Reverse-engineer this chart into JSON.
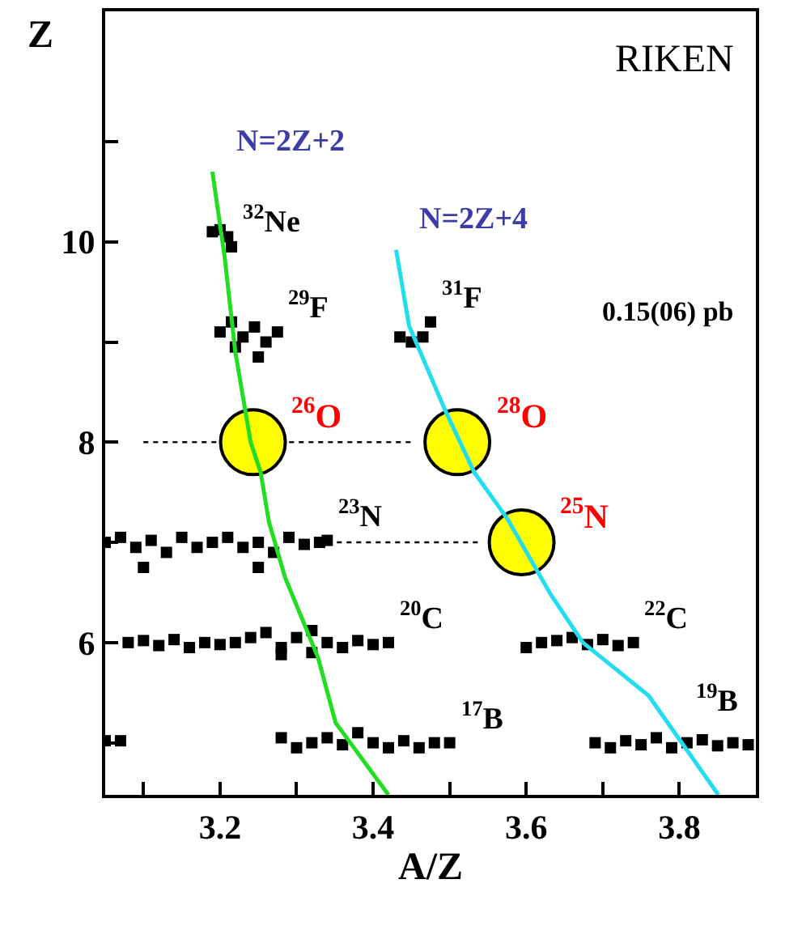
{
  "chart_data": {
    "type": "scatter",
    "xlabel": "A/Z",
    "ylabel": "Z",
    "xlim": [
      3.05,
      3.9
    ],
    "ylim": [
      4.48,
      12.3
    ],
    "xticks": [
      {
        "value": 3.1,
        "label": null
      },
      3.2,
      {
        "value": 3.3,
        "label": null
      },
      3.4,
      {
        "value": 3.5,
        "label": null
      },
      3.6,
      {
        "value": 3.7,
        "label": null
      },
      3.8
    ],
    "yticks": [
      {
        "value": 5,
        "label": null
      },
      6,
      {
        "value": 7,
        "label": null
      },
      8,
      {
        "value": 9,
        "label": null
      },
      10,
      {
        "value": 11,
        "label": null
      }
    ],
    "series": [
      {
        "type": "line",
        "color": "#000000",
        "line_style": "dotted",
        "marker": "none",
        "x": [
          3.1,
          3.45
        ],
        "values": [
          8,
          8
        ]
      },
      {
        "type": "line",
        "color": "#000000",
        "line_style": "dotted",
        "marker": "none",
        "x": [
          3.34,
          3.54
        ],
        "values": [
          7,
          7
        ]
      },
      {
        "name": "$^{32}$Ne",
        "color": "#000000",
        "marker": "square",
        "x": [
          3.19,
          3.2,
          3.21,
          3.215
        ],
        "values": [
          10.1,
          10.12,
          10.05,
          9.95
        ]
      },
      {
        "name": "$^{29}$F",
        "color": "#000000",
        "marker": "square",
        "x": [
          3.2,
          3.215,
          3.23,
          3.245,
          3.26,
          3.275,
          3.22,
          3.25
        ],
        "values": [
          9.1,
          9.2,
          9.05,
          9.15,
          9.0,
          9.1,
          8.95,
          8.85
        ]
      },
      {
        "name": "$^{31}$F",
        "color": "#000000",
        "marker": "square",
        "x": [
          3.435,
          3.45,
          3.465,
          3.475
        ],
        "values": [
          9.05,
          9.0,
          9.05,
          9.2
        ]
      },
      {
        "name": "$^{23}$N",
        "color": "#000000",
        "marker": "square",
        "x": [
          3.05,
          3.07,
          3.09,
          3.11,
          3.13,
          3.15,
          3.17,
          3.19,
          3.21,
          3.23,
          3.25,
          3.27,
          3.29,
          3.31,
          3.33,
          3.34,
          3.1,
          3.25
        ],
        "values": [
          7.0,
          7.05,
          6.95,
          7.02,
          6.9,
          7.05,
          6.95,
          7.0,
          7.05,
          6.95,
          7.0,
          6.9,
          7.05,
          6.98,
          7.0,
          7.02,
          6.75,
          6.75
        ]
      },
      {
        "name": "$^{20}$C",
        "color": "#000000",
        "marker": "square",
        "x": [
          3.08,
          3.1,
          3.12,
          3.14,
          3.16,
          3.18,
          3.2,
          3.22,
          3.24,
          3.26,
          3.28,
          3.3,
          3.32,
          3.34,
          3.36,
          3.38,
          3.4,
          3.42,
          3.28,
          3.32
        ],
        "values": [
          6.0,
          6.02,
          5.97,
          6.03,
          5.95,
          6.0,
          5.98,
          6.0,
          6.05,
          6.1,
          5.95,
          6.05,
          5.9,
          6.0,
          5.95,
          6.02,
          5.98,
          6.0,
          5.88,
          6.12
        ]
      },
      {
        "name": "$^{22}$C",
        "color": "#000000",
        "marker": "square",
        "x": [
          3.6,
          3.62,
          3.64,
          3.66,
          3.68,
          3.7,
          3.72,
          3.74
        ],
        "values": [
          5.95,
          6.0,
          6.02,
          6.05,
          5.98,
          6.03,
          5.97,
          6.0
        ]
      },
      {
        "color": "#000000",
        "marker": "square",
        "x": [
          3.05,
          3.07
        ],
        "values": [
          5.02,
          5.02
        ]
      },
      {
        "name": "$^{17}$B",
        "color": "#000000",
        "marker": "square",
        "x": [
          3.28,
          3.3,
          3.32,
          3.34,
          3.36,
          3.38,
          3.4,
          3.42,
          3.44,
          3.46,
          3.48,
          3.5
        ],
        "values": [
          5.05,
          4.95,
          5.0,
          5.05,
          4.98,
          5.1,
          5.0,
          4.95,
          5.02,
          4.95,
          5.0,
          5.0
        ]
      },
      {
        "name": "$^{19}$B",
        "color": "#000000",
        "marker": "square",
        "x": [
          3.69,
          3.71,
          3.73,
          3.75,
          3.77,
          3.79,
          3.81,
          3.83,
          3.85,
          3.87,
          3.89
        ],
        "values": [
          5.0,
          4.95,
          5.02,
          4.98,
          5.05,
          4.95,
          5.0,
          5.03,
          4.97,
          5.0,
          4.98
        ]
      },
      {
        "name": "$^{26}$O",
        "color": "#ffff00",
        "marker": "circle",
        "x": [
          3.243
        ],
        "values": [
          8
        ]
      },
      {
        "name": "$^{28}$O",
        "color": "#ffff00",
        "marker": "circle",
        "x": [
          3.51
        ],
        "values": [
          8
        ]
      },
      {
        "name": "$^{25}$N",
        "color": "#ffff00",
        "marker": "circle",
        "x": [
          3.594
        ],
        "values": [
          7
        ]
      },
      {
        "name": "N=2Z+2",
        "type": "line",
        "color": "#22dd22",
        "marker": "none",
        "line_style": "solid",
        "x": [
          3.19,
          3.206,
          3.22,
          3.24,
          3.253,
          3.264,
          3.285,
          3.328,
          3.351,
          3.42
        ],
        "values": [
          10.7,
          9.85,
          8.9,
          8.0,
          7.7,
          7.2,
          6.65,
          5.85,
          5.2,
          4.48
        ]
      },
      {
        "name": "N=2Z+4",
        "type": "line",
        "color": "#22ddee",
        "marker": "none",
        "line_style": "solid",
        "x": [
          3.43,
          3.447,
          3.494,
          3.532,
          3.575,
          3.632,
          3.674,
          3.76,
          3.851
        ],
        "values": [
          9.92,
          9.16,
          8.32,
          7.7,
          7.24,
          6.48,
          6.0,
          5.47,
          4.48
        ]
      }
    ],
    "annotations": [
      "RIKEN",
      "0.15(06) pb"
    ]
  }
}
